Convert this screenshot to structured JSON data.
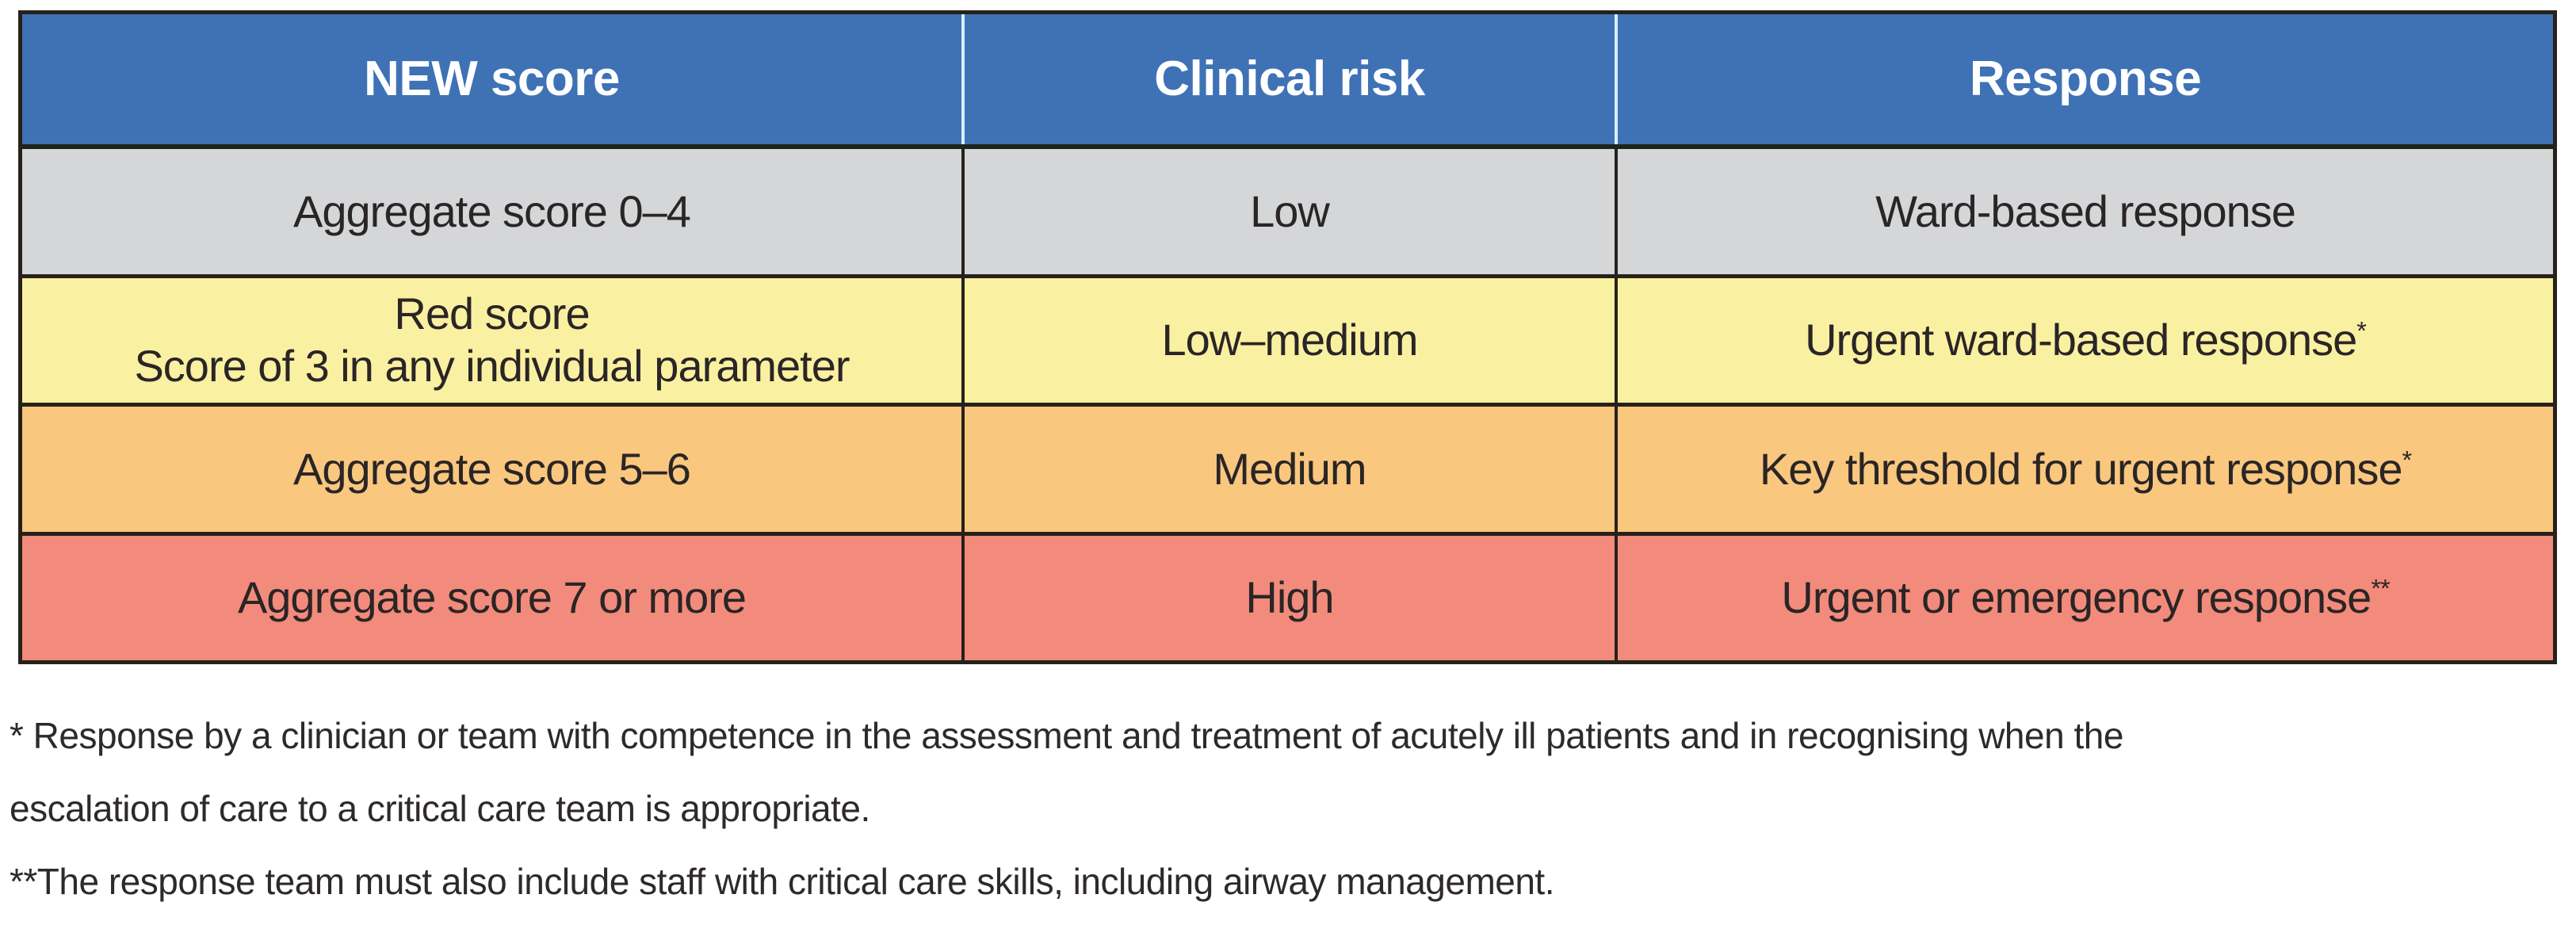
{
  "table": {
    "columns": [
      "NEW score",
      "Clinical risk",
      "Response"
    ],
    "rows": [
      {
        "score_lines": [
          "Aggregate score 0–4",
          ""
        ],
        "risk": "Low",
        "response": "Ward-based response",
        "marker": "",
        "bg": "#d5d6d8"
      },
      {
        "score_lines": [
          "Red score",
          "Score of 3 in any individual parameter"
        ],
        "risk": "Low–medium",
        "response": "Urgent ward-based response",
        "marker": "*",
        "bg": "#faf0a1"
      },
      {
        "score_lines": [
          "Aggregate score 5–6",
          ""
        ],
        "risk": "Medium",
        "response": "Key threshold for urgent response",
        "marker": "*",
        "bg": "#f9c77e"
      },
      {
        "score_lines": [
          "Aggregate score 7 or more",
          ""
        ],
        "risk": "High",
        "response": "Urgent or emergency response",
        "marker": "**",
        "bg": "#f28b7b"
      }
    ]
  },
  "footnotes": {
    "line1": "* Response by a clinician or team with competence in the assessment and treatment of acutely ill patients and in recognising when the",
    "line2": "escalation of care to a critical care team is appropriate.",
    "line3": "**The response team must also include staff with critical care skills, including airway management."
  },
  "colors": {
    "header_bg": "#3e72b5",
    "header_text": "#ffffff",
    "header_divider": "#d8effb",
    "row_low": "#d5d6d8",
    "row_low_medium": "#faf0a1",
    "row_medium": "#f9c77e",
    "row_high": "#f28b7b",
    "border": "#26211a",
    "text": "#2a2526"
  }
}
